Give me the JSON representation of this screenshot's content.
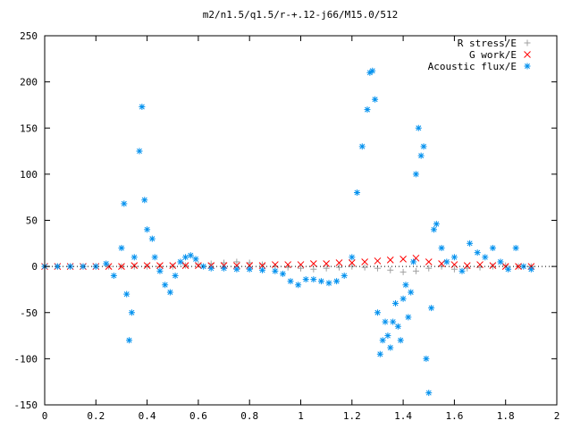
{
  "chart_data": {
    "type": "scatter",
    "title": "m2/n1.5/q1.5/r-+.12-j66/M15.0/512",
    "xlabel": "",
    "ylabel": "",
    "xlim": [
      0,
      2
    ],
    "ylim": [
      -150,
      250
    ],
    "xticks": [
      "0",
      "0.2",
      "0.4",
      "0.6",
      "0.8",
      "1",
      "1.2",
      "1.4",
      "1.6",
      "1.8",
      "2"
    ],
    "yticks": [
      "250",
      "200",
      "150",
      "100",
      "50",
      "0",
      "-50",
      "-100",
      "-150"
    ],
    "grid": false,
    "legend_position": "top-right",
    "series": [
      {
        "name": "R stress/E",
        "marker": "plus",
        "color": "#a0a0a0",
        "x": [
          0.0,
          0.05,
          0.1,
          0.15,
          0.2,
          0.25,
          0.3,
          0.35,
          0.4,
          0.45,
          0.5,
          0.55,
          0.6,
          0.65,
          0.7,
          0.75,
          0.8,
          0.85,
          0.9,
          0.95,
          1.0,
          1.05,
          1.1,
          1.15,
          1.2,
          1.25,
          1.3,
          1.35,
          1.4,
          1.45,
          1.5,
          1.55,
          1.6,
          1.65,
          1.7,
          1.75,
          1.8,
          1.85,
          1.9
        ],
        "y": [
          0,
          0,
          0,
          0,
          0,
          0,
          0,
          0,
          0,
          0,
          0,
          1,
          2,
          3,
          4,
          5,
          4,
          2,
          0,
          -1,
          -2,
          -3,
          -2,
          -1,
          0,
          -1,
          -2,
          -4,
          -6,
          -5,
          -2,
          0,
          -3,
          -2,
          -1,
          0,
          1,
          0,
          0
        ]
      },
      {
        "name": "G work/E",
        "marker": "cross",
        "color": "#ff0000",
        "x": [
          0.0,
          0.05,
          0.1,
          0.15,
          0.2,
          0.25,
          0.3,
          0.35,
          0.4,
          0.45,
          0.5,
          0.55,
          0.6,
          0.65,
          0.7,
          0.75,
          0.8,
          0.85,
          0.9,
          0.95,
          1.0,
          1.05,
          1.1,
          1.15,
          1.2,
          1.25,
          1.3,
          1.35,
          1.4,
          1.45,
          1.5,
          1.55,
          1.6,
          1.65,
          1.7,
          1.75,
          1.8,
          1.85,
          1.9
        ],
        "y": [
          0,
          0,
          0,
          0,
          0,
          0,
          0,
          1,
          1,
          1,
          1,
          1,
          1,
          1,
          1,
          1,
          1,
          1,
          2,
          2,
          2,
          3,
          3,
          4,
          4,
          5,
          6,
          7,
          8,
          9,
          5,
          3,
          2,
          1,
          2,
          1,
          0,
          0,
          0
        ]
      },
      {
        "name": "Acoustic flux/E",
        "marker": "star",
        "color": "#0090ee",
        "x": [
          0.0,
          0.05,
          0.1,
          0.15,
          0.2,
          0.24,
          0.27,
          0.3,
          0.31,
          0.32,
          0.33,
          0.34,
          0.35,
          0.37,
          0.38,
          0.39,
          0.4,
          0.42,
          0.43,
          0.45,
          0.47,
          0.49,
          0.51,
          0.53,
          0.55,
          0.57,
          0.59,
          0.62,
          0.65,
          0.7,
          0.75,
          0.8,
          0.85,
          0.9,
          0.93,
          0.96,
          0.99,
          1.02,
          1.05,
          1.08,
          1.11,
          1.14,
          1.17,
          1.2,
          1.22,
          1.24,
          1.26,
          1.27,
          1.28,
          1.29,
          1.3,
          1.31,
          1.32,
          1.33,
          1.34,
          1.35,
          1.36,
          1.37,
          1.38,
          1.39,
          1.4,
          1.41,
          1.42,
          1.43,
          1.44,
          1.45,
          1.46,
          1.47,
          1.48,
          1.49,
          1.5,
          1.51,
          1.52,
          1.53,
          1.55,
          1.57,
          1.6,
          1.63,
          1.66,
          1.69,
          1.72,
          1.75,
          1.78,
          1.81,
          1.84,
          1.87,
          1.9
        ],
        "y": [
          0,
          0,
          0,
          0,
          0,
          3,
          -10,
          20,
          68,
          -30,
          -80,
          -50,
          10,
          125,
          173,
          72,
          40,
          30,
          10,
          -5,
          -20,
          -28,
          -10,
          5,
          10,
          12,
          8,
          0,
          -2,
          -2,
          -3,
          -3,
          -4,
          -5,
          -8,
          -16,
          -20,
          -14,
          -14,
          -16,
          -18,
          -16,
          -10,
          10,
          80,
          130,
          170,
          210,
          212,
          181,
          -50,
          -95,
          -80,
          -60,
          -75,
          -88,
          -60,
          -40,
          -65,
          -80,
          -35,
          -20,
          -55,
          -28,
          5,
          100,
          150,
          120,
          130,
          -100,
          -137,
          -45,
          40,
          46,
          20,
          5,
          10,
          -5,
          25,
          15,
          10,
          20,
          5,
          -3,
          20,
          0,
          -3
        ]
      }
    ]
  }
}
